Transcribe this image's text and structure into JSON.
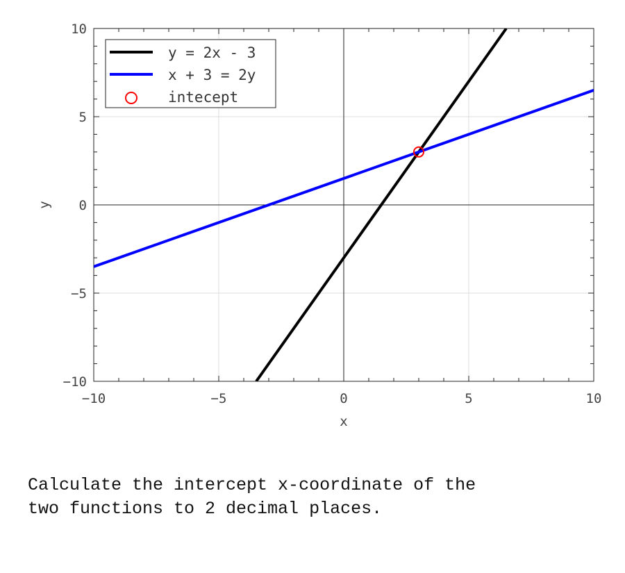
{
  "chart_data": {
    "type": "line",
    "title": "",
    "xlabel": "x",
    "ylabel": "y",
    "xlim": [
      -10,
      10
    ],
    "ylim": [
      -10,
      10
    ],
    "xticks": [
      -10,
      -5,
      0,
      5,
      10
    ],
    "yticks": [
      -10,
      -5,
      0,
      5,
      10
    ],
    "xtick_labels": [
      "−10",
      "−5",
      "0",
      "5",
      "10"
    ],
    "ytick_labels": [
      "−10",
      "−5",
      "0",
      "5",
      "10"
    ],
    "grid": true,
    "legend_position": "top-left",
    "series": [
      {
        "name": "y = 2x - 3",
        "color": "#000000",
        "x": [
          -3.5,
          6.5
        ],
        "y": [
          -10,
          10
        ]
      },
      {
        "name": "x + 3 = 2y",
        "color": "#0000ff",
        "x": [
          -10,
          10
        ],
        "y": [
          -3.5,
          6.5
        ]
      },
      {
        "name": "intecept",
        "color": "#ff0000",
        "marker": "circle-open",
        "x": [
          3
        ],
        "y": [
          3
        ]
      }
    ]
  },
  "question": {
    "text": "Calculate the intercept x-coordinate of the\ntwo functions to 2 decimal places."
  }
}
